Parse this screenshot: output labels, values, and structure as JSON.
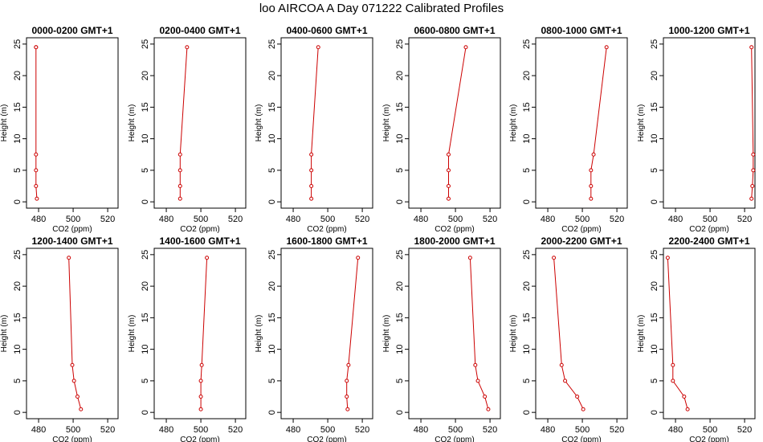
{
  "title": "loo AIRCOA A  Day 071222  Calibrated Profiles",
  "colors": {
    "series": "#cc0000",
    "axis": "#000000",
    "background": "#ffffff"
  },
  "chart_data": [
    {
      "type": "line",
      "title": "0000-0200 GMT+1",
      "xlabel": "CO2 (ppm)",
      "ylabel": "Height (m)",
      "xlim": [
        473,
        526
      ],
      "ylim": [
        -1,
        26
      ],
      "xticks": [
        480,
        500,
        520
      ],
      "yticks": [
        0,
        5,
        10,
        15,
        20,
        25
      ],
      "x": [
        479,
        478.5,
        478.5,
        478.5,
        478.5,
        478.5
      ],
      "y": [
        0.5,
        2.5,
        5,
        7.5,
        24.5,
        24.5
      ]
    },
    {
      "type": "line",
      "title": "0200-0400 GMT+1",
      "xlabel": "CO2 (ppm)",
      "ylabel": "Height (m)",
      "xlim": [
        473,
        526
      ],
      "ylim": [
        -1,
        26
      ],
      "xticks": [
        480,
        500,
        520
      ],
      "yticks": [
        0,
        5,
        10,
        15,
        20,
        25
      ],
      "x": [
        488,
        488,
        488,
        488,
        492
      ],
      "y": [
        0.5,
        2.5,
        5,
        7.5,
        24.5
      ]
    },
    {
      "type": "line",
      "title": "0400-0600 GMT+1",
      "xlabel": "CO2 (ppm)",
      "ylabel": "Height (m)",
      "xlim": [
        473,
        526
      ],
      "ylim": [
        -1,
        26
      ],
      "xticks": [
        480,
        500,
        520
      ],
      "yticks": [
        0,
        5,
        10,
        15,
        20,
        25
      ],
      "x": [
        490.5,
        490.5,
        490.5,
        490.5,
        494.5
      ],
      "y": [
        0.5,
        2.5,
        5,
        7.5,
        24.5
      ]
    },
    {
      "type": "line",
      "title": "0600-0800 GMT+1",
      "xlabel": "CO2 (ppm)",
      "ylabel": "Height (m)",
      "xlim": [
        473,
        526
      ],
      "ylim": [
        -1,
        26
      ],
      "xticks": [
        480,
        500,
        520
      ],
      "yticks": [
        0,
        5,
        10,
        15,
        20,
        25
      ],
      "x": [
        496,
        496,
        496,
        496,
        506
      ],
      "y": [
        0.5,
        2.5,
        5,
        7.5,
        24.5
      ]
    },
    {
      "type": "line",
      "title": "0800-1000 GMT+1",
      "xlabel": "CO2 (ppm)",
      "ylabel": "Height (m)",
      "xlim": [
        473,
        526
      ],
      "ylim": [
        -1,
        26
      ],
      "xticks": [
        480,
        500,
        520
      ],
      "yticks": [
        0,
        5,
        10,
        15,
        20,
        25
      ],
      "x": [
        505,
        505,
        505,
        506.5,
        514
      ],
      "y": [
        0.5,
        2.5,
        5,
        7.5,
        24.5
      ]
    },
    {
      "type": "line",
      "title": "1000-1200 GMT+1",
      "xlabel": "CO2 (ppm)",
      "ylabel": "Height (m)",
      "xlim": [
        473,
        526
      ],
      "ylim": [
        -1,
        26
      ],
      "xticks": [
        480,
        500,
        520
      ],
      "yticks": [
        0,
        5,
        10,
        15,
        20,
        25
      ],
      "x": [
        524,
        524.5,
        525,
        525,
        524
      ],
      "y": [
        0.5,
        2.5,
        5,
        7.5,
        24.5
      ]
    },
    {
      "type": "line",
      "title": "1200-1400 GMT+1",
      "xlabel": "CO2 (ppm)",
      "ylabel": "Height (m)",
      "xlim": [
        473,
        526
      ],
      "ylim": [
        -1,
        26
      ],
      "xticks": [
        480,
        500,
        520
      ],
      "yticks": [
        0,
        5,
        10,
        15,
        20,
        25
      ],
      "x": [
        504.5,
        502.5,
        500.5,
        499.5,
        497.5
      ],
      "y": [
        0.5,
        2.5,
        5,
        7.5,
        24.5
      ]
    },
    {
      "type": "line",
      "title": "1400-1600 GMT+1",
      "xlabel": "CO2 (ppm)",
      "ylabel": "Height (m)",
      "xlim": [
        473,
        526
      ],
      "ylim": [
        -1,
        26
      ],
      "xticks": [
        480,
        500,
        520
      ],
      "yticks": [
        0,
        5,
        10,
        15,
        20,
        25
      ],
      "x": [
        500,
        500,
        500,
        500.5,
        503.5
      ],
      "y": [
        0.5,
        2.5,
        5,
        7.5,
        24.5
      ]
    },
    {
      "type": "line",
      "title": "1600-1800 GMT+1",
      "xlabel": "CO2 (ppm)",
      "ylabel": "Height (m)",
      "xlim": [
        473,
        526
      ],
      "ylim": [
        -1,
        26
      ],
      "xticks": [
        480,
        500,
        520
      ],
      "yticks": [
        0,
        5,
        10,
        15,
        20,
        25
      ],
      "x": [
        511.5,
        511,
        511,
        512,
        517.5
      ],
      "y": [
        0.5,
        2.5,
        5,
        7.5,
        24.5
      ]
    },
    {
      "type": "line",
      "title": "1800-2000 GMT+1",
      "xlabel": "CO2 (ppm)",
      "ylabel": "Height (m)",
      "xlim": [
        473,
        526
      ],
      "ylim": [
        -1,
        26
      ],
      "xticks": [
        480,
        500,
        520
      ],
      "yticks": [
        0,
        5,
        10,
        15,
        20,
        25
      ],
      "x": [
        519,
        517,
        513,
        511.5,
        508.5
      ],
      "y": [
        0.5,
        2.5,
        5,
        7.5,
        24.5
      ]
    },
    {
      "type": "line",
      "title": "2000-2200 GMT+1",
      "xlabel": "CO2 (ppm)",
      "ylabel": "Height (m)",
      "xlim": [
        473,
        526
      ],
      "ylim": [
        -1,
        26
      ],
      "xticks": [
        480,
        500,
        520
      ],
      "yticks": [
        0,
        5,
        10,
        15,
        20,
        25
      ],
      "x": [
        500.5,
        497,
        490,
        488,
        483.5
      ],
      "y": [
        0.5,
        2.5,
        5,
        7.5,
        24.5
      ]
    },
    {
      "type": "line",
      "title": "2200-2400 GMT+1",
      "xlabel": "CO2 (ppm)",
      "ylabel": "Height (m)",
      "xlim": [
        473,
        526
      ],
      "ylim": [
        -1,
        26
      ],
      "xticks": [
        480,
        500,
        520
      ],
      "yticks": [
        0,
        5,
        10,
        15,
        20,
        25
      ],
      "x": [
        487,
        485,
        478.5,
        478.5,
        475.5
      ],
      "y": [
        0.5,
        2.5,
        5,
        7.5,
        24.5
      ]
    }
  ]
}
